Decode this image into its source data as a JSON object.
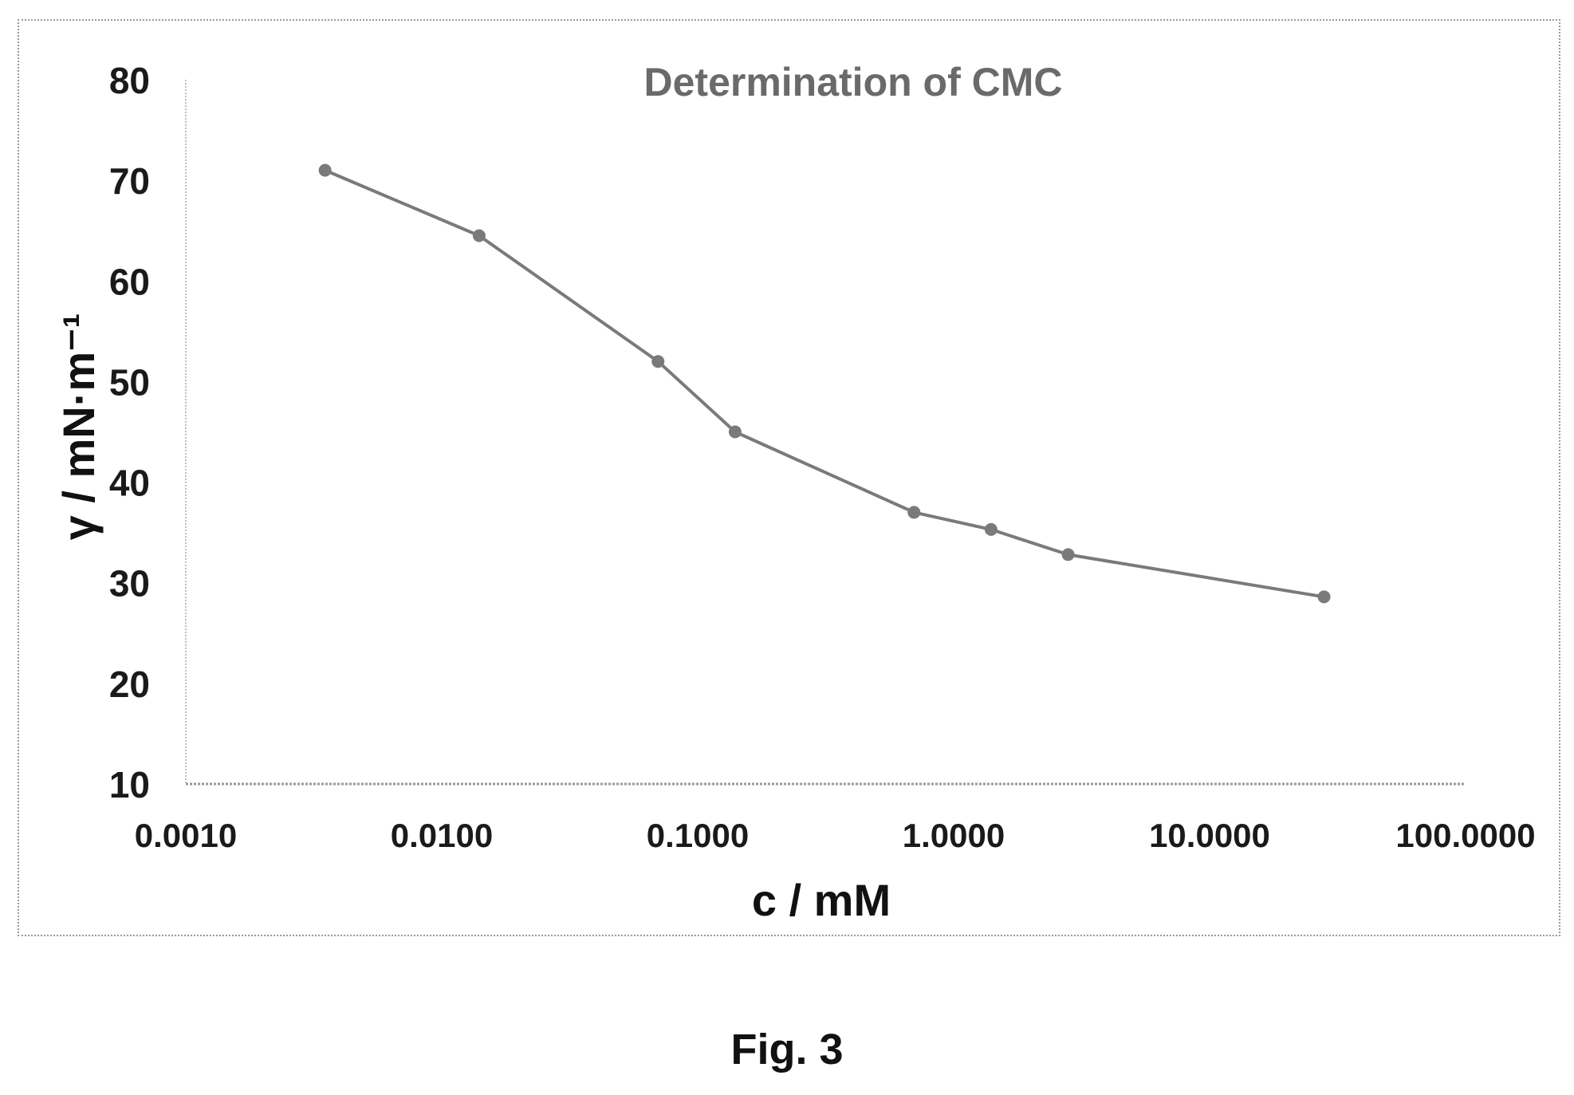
{
  "chart_data": {
    "type": "line",
    "title": "Determination of CMC",
    "xlabel": "c / mM",
    "ylabel": "γ / mN·m⁻¹",
    "x_scale": "log",
    "xlim": [
      0.001,
      100
    ],
    "ylim": [
      10,
      80
    ],
    "x_ticks": [
      "0.0010",
      "0.0100",
      "0.1000",
      "1.0000",
      "10.0000",
      "100.0000"
    ],
    "y_ticks": [
      "10",
      "20",
      "30",
      "40",
      "50",
      "60",
      "70",
      "80"
    ],
    "grid": false,
    "legend": "none",
    "series": [
      {
        "x": [
          0.0035,
          0.014,
          0.07,
          0.14,
          0.7,
          1.4,
          2.8,
          28
        ],
        "y": [
          71,
          64.5,
          52,
          45,
          37,
          35.3,
          32.8,
          28.6
        ],
        "color": "#7a7a7a"
      }
    ]
  },
  "caption": "Fig. 3"
}
